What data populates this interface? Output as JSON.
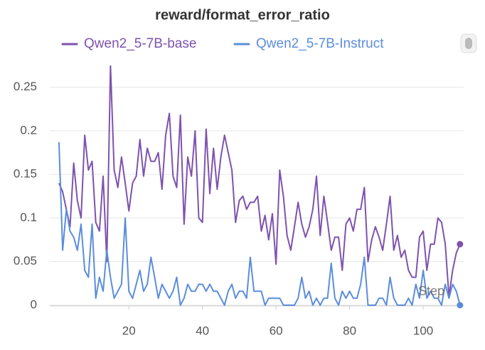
{
  "chart_data": {
    "type": "line",
    "title": "reward/format_error_ratio",
    "x_label": "Step",
    "x": [
      1,
      2,
      3,
      4,
      5,
      6,
      7,
      8,
      9,
      10,
      11,
      12,
      13,
      14,
      15,
      16,
      17,
      18,
      19,
      20,
      21,
      22,
      23,
      24,
      25,
      26,
      27,
      28,
      29,
      30,
      31,
      32,
      33,
      34,
      35,
      36,
      37,
      38,
      39,
      40,
      41,
      42,
      43,
      44,
      45,
      46,
      47,
      48,
      49,
      50,
      51,
      52,
      53,
      54,
      55,
      56,
      57,
      58,
      59,
      60,
      61,
      62,
      63,
      64,
      65,
      66,
      67,
      68,
      69,
      70,
      71,
      72,
      73,
      74,
      75,
      76,
      77,
      78,
      79,
      80,
      81,
      82,
      83,
      84,
      85,
      86,
      87,
      88,
      89,
      90,
      91,
      92,
      93,
      94,
      95,
      96,
      97,
      98,
      99,
      100,
      101,
      102,
      103,
      104,
      105,
      106,
      107,
      108,
      109,
      110
    ],
    "series": [
      {
        "name": "Qwen2_5-7B-base",
        "color": "#7e52ae",
        "values": [
          0.14,
          0.13,
          0.11,
          0.09,
          0.163,
          0.12,
          0.1,
          0.195,
          0.155,
          0.165,
          0.095,
          0.085,
          0.148,
          0.05,
          0.275,
          0.155,
          0.135,
          0.17,
          0.14,
          0.108,
          0.14,
          0.148,
          0.19,
          0.148,
          0.18,
          0.165,
          0.165,
          0.175,
          0.133,
          0.195,
          0.22,
          0.148,
          0.135,
          0.218,
          0.093,
          0.17,
          0.148,
          0.2,
          0.1,
          0.095,
          0.202,
          0.128,
          0.18,
          0.133,
          0.17,
          0.195,
          0.175,
          0.155,
          0.095,
          0.12,
          0.125,
          0.11,
          0.118,
          0.118,
          0.125,
          0.085,
          0.103,
          0.075,
          0.105,
          0.047,
          0.155,
          0.125,
          0.08,
          0.063,
          0.09,
          0.118,
          0.093,
          0.078,
          0.09,
          0.11,
          0.148,
          0.08,
          0.125,
          0.095,
          0.063,
          0.078,
          0.078,
          0.04,
          0.093,
          0.1,
          0.085,
          0.11,
          0.11,
          0.135,
          0.05,
          0.075,
          0.09,
          0.078,
          0.063,
          0.093,
          0.125,
          0.063,
          0.08,
          0.055,
          0.063,
          0.04,
          0.032,
          0.032,
          0.078,
          0.085,
          0.04,
          0.07,
          0.07,
          0.1,
          0.095,
          0.07,
          0.01,
          0.04,
          0.06,
          0.07
        ]
      },
      {
        "name": "Qwen2_5-7B-Instruct",
        "color": "#5b8ddb",
        "values": [
          0.187,
          0.063,
          0.11,
          0.085,
          0.078,
          0.063,
          0.093,
          0.04,
          0.032,
          0.093,
          0.008,
          0.032,
          0.016,
          0.063,
          0.032,
          0.008,
          0.016,
          0.024,
          0.1,
          0.016,
          0.008,
          0.024,
          0.04,
          0.016,
          0.024,
          0.055,
          0.032,
          0.008,
          0.024,
          0.016,
          0.008,
          0.016,
          0.032,
          0,
          0.008,
          0.024,
          0.016,
          0.016,
          0.024,
          0.024,
          0.016,
          0.024,
          0.016,
          0.016,
          0.008,
          0,
          0.016,
          0.024,
          0.008,
          0.016,
          0.016,
          0.008,
          0.055,
          0.016,
          0.016,
          0.016,
          0,
          0.008,
          0.008,
          0.008,
          0.008,
          0,
          0,
          0,
          0,
          0.008,
          0.032,
          0.008,
          0.016,
          0,
          0.008,
          0,
          0.008,
          0.008,
          0.048,
          0.008,
          0,
          0.016,
          0.008,
          0.016,
          0.008,
          0.008,
          0.024,
          0.055,
          0,
          0,
          0,
          0.008,
          0.008,
          0,
          0.032,
          0.008,
          0,
          0,
          0,
          0.008,
          0,
          0.024,
          0.008,
          0.04,
          0.008,
          0.016,
          0.008,
          0.008,
          0,
          0.024,
          0.008,
          0.024,
          0.016,
          0
        ]
      }
    ],
    "xlim": [
      -1.5,
      111
    ],
    "ylim": [
      0,
      0.275
    ],
    "xticks": [
      20,
      40,
      60,
      80,
      100
    ],
    "yticks": [
      0,
      0.05,
      0.1,
      0.15,
      0.2,
      0.25
    ],
    "grid": true
  }
}
